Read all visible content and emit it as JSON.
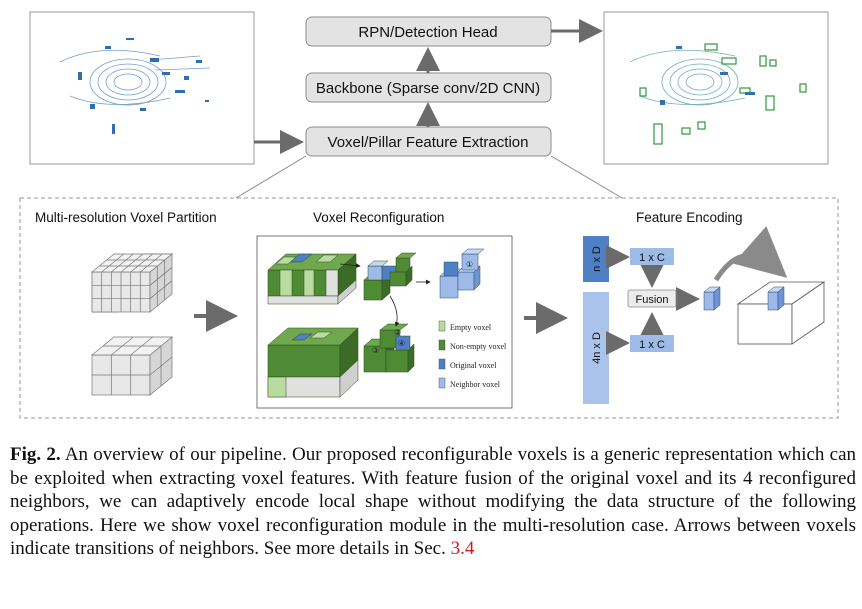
{
  "pipeline": {
    "head": "RPN/Detection Head",
    "backbone": "Backbone (Sparse conv/2D CNN)",
    "feature_extraction": "Voxel/Pillar Feature Extraction"
  },
  "sections": {
    "partition": "Multi-resolution Voxel Partition",
    "reconfiguration": "Voxel Reconfiguration",
    "encoding": "Feature Encoding"
  },
  "legend": {
    "empty": "Empty voxel",
    "non_empty": "Non-empty voxel",
    "original": "Original voxel",
    "neighbor": "Neighbor voxel"
  },
  "encoding": {
    "nxd": "n x D",
    "fourxnd": "4n x D",
    "onexc_top": "1 x C",
    "onexc_bottom": "1 x C",
    "fusion": "Fusion"
  },
  "markers": [
    "①",
    "②",
    "③",
    "④"
  ],
  "colors": {
    "empty": "#b9dba0",
    "non_empty": "#4f8a35",
    "original": "#4f7fc4",
    "neighbor": "#9dbbe6",
    "encode_bar": "#4f7fc4",
    "encode_bar_light": "#a9c3ea",
    "reference": "#d11a1a"
  },
  "caption": {
    "label": "Fig. 2.",
    "text": "An overview of our pipeline. Our proposed reconfigurable voxels is a generic representation which can be exploited when extracting voxel features. With feature fusion of the original voxel and its 4 reconfigured neighbors, we can adaptively encode local shape without modifying the data structure of the following operations. Here we show voxel reconfiguration module in the multi-resolution case. Arrows between voxels indicate transitions of neighbors. See more details in Sec.",
    "ref": "3.4"
  }
}
